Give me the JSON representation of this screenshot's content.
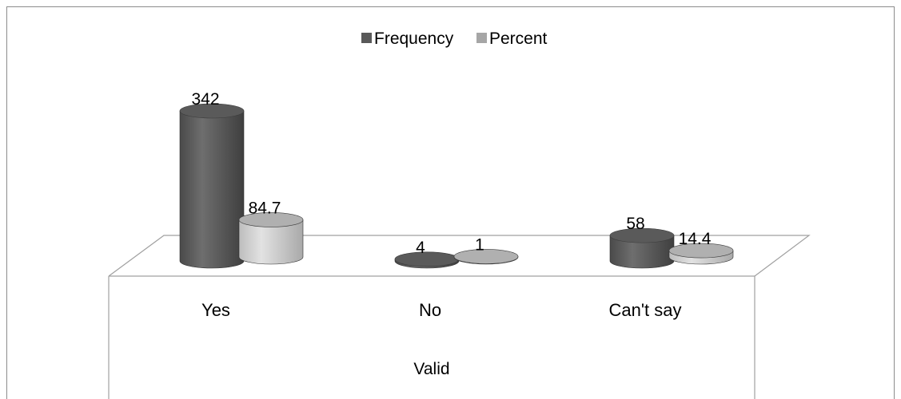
{
  "chart_data": {
    "type": "bar",
    "style": "3d-cylinder",
    "categories": [
      "Yes",
      "No",
      "Can't say"
    ],
    "group_label": "Valid",
    "series": [
      {
        "name": "Frequency",
        "values": [
          342,
          4,
          58
        ],
        "color": "#595959"
      },
      {
        "name": "Percent",
        "values": [
          84.7,
          1,
          14.4
        ],
        "color": "#a6a6a6"
      }
    ],
    "data_labels": [
      [
        "342",
        "4",
        "58"
      ],
      [
        "84.7",
        "1",
        "14.4"
      ]
    ],
    "legend_position": "top-center",
    "grid": false
  }
}
